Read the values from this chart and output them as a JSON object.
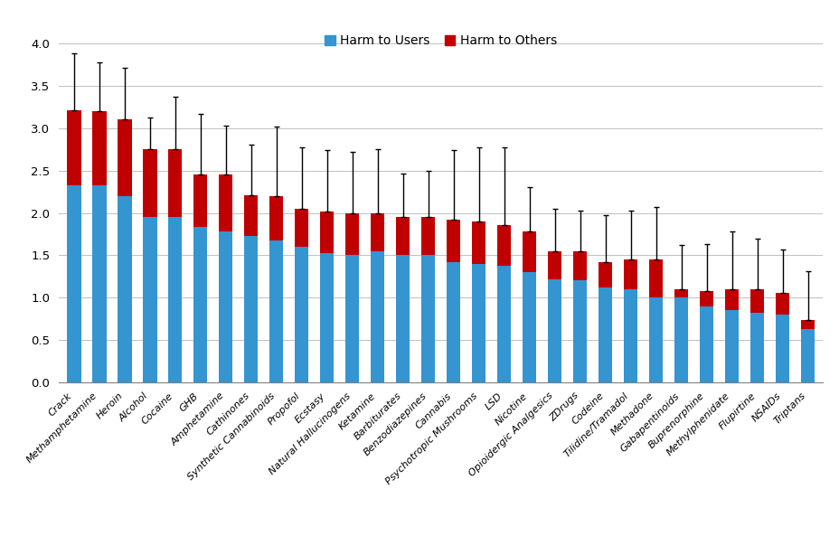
{
  "categories": [
    "Crack",
    "Methamphetamine",
    "Heroin",
    "Alcohol",
    "Cocaine",
    "GHB",
    "Amphetamine",
    "Cathinones",
    "Synthetic Cannabinoids",
    "Propofol",
    "Ecstasy",
    "Natural Hallucinogens",
    "Ketamine",
    "Barbiturates",
    "Benzodiazepines",
    "Cannabis",
    "Psychotropic Mushrooms",
    "LSD",
    "Nicotine",
    "Opioidergic Analgesics",
    "ZDrugs",
    "Codeine",
    "Tilidine/Tramadol",
    "Methadone",
    "Gabapentinoids",
    "Buprenorphine",
    "Methylphenidate",
    "Flupirtine",
    "NSAIDs",
    "Triptans"
  ],
  "harm_to_users": [
    2.33,
    2.33,
    2.2,
    1.95,
    1.95,
    1.83,
    1.78,
    1.73,
    1.68,
    1.6,
    1.52,
    1.5,
    1.55,
    1.5,
    1.5,
    1.42,
    1.4,
    1.38,
    1.3,
    1.22,
    1.2,
    1.12,
    1.1,
    1.0,
    1.0,
    0.9,
    0.85,
    0.82,
    0.8,
    0.63
  ],
  "harm_to_others": [
    0.88,
    0.87,
    0.91,
    0.8,
    0.8,
    0.62,
    0.67,
    0.48,
    0.52,
    0.45,
    0.5,
    0.5,
    0.45,
    0.45,
    0.45,
    0.5,
    0.5,
    0.48,
    0.48,
    0.33,
    0.35,
    0.3,
    0.35,
    0.45,
    0.1,
    0.18,
    0.25,
    0.28,
    0.25,
    0.1
  ],
  "error_upper": [
    0.68,
    0.58,
    0.6,
    0.38,
    0.62,
    0.72,
    0.58,
    0.6,
    0.82,
    0.72,
    0.72,
    0.72,
    0.75,
    0.52,
    0.55,
    0.82,
    0.88,
    0.92,
    0.52,
    0.5,
    0.48,
    0.55,
    0.58,
    0.62,
    0.52,
    0.55,
    0.68,
    0.6,
    0.52,
    0.58
  ],
  "bar_color_users": "#3595d0",
  "bar_color_others": "#c00000",
  "error_color": "#000000",
  "legend_users": "Harm to Users",
  "legend_others": "Harm to Others",
  "ylim": [
    0,
    4.0
  ],
  "yticks": [
    0.0,
    0.5,
    1.0,
    1.5,
    2.0,
    2.5,
    3.0,
    3.5,
    4.0
  ],
  "background_color": "#ffffff",
  "grid_color": "#c0c0c0"
}
